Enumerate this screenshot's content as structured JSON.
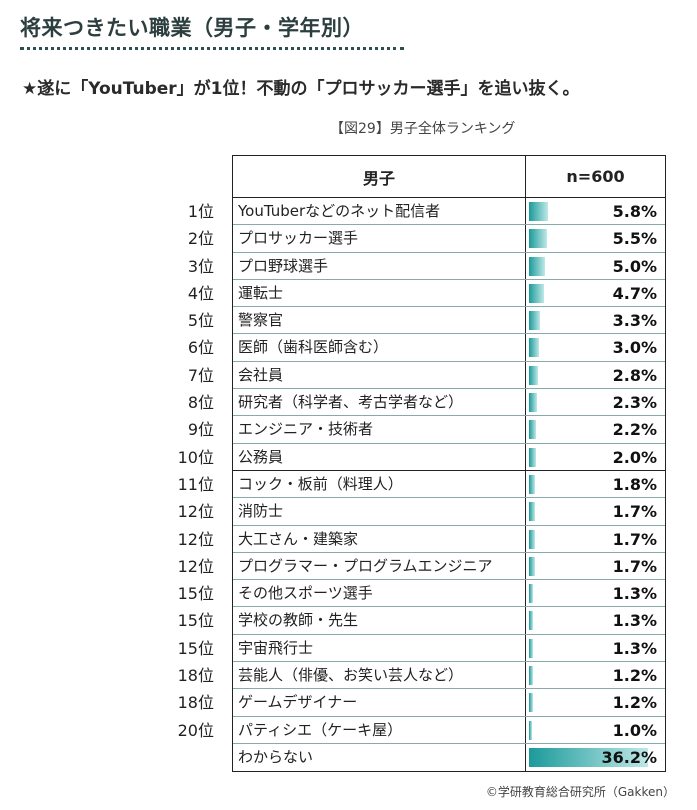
{
  "header": {
    "title": "将来つきたい職業（男子・学年別）",
    "subtitle": "★遂に「YouTuber」が1位！不動の「プロサッカー選手」を追い抜く。",
    "figure_caption": "【図29】男子全体ランキング",
    "credit": "©学研教育総合研究所（Gakken）"
  },
  "table": {
    "col_name_header": "男子",
    "col_value_header": "n=600"
  },
  "chart_data": {
    "type": "bar",
    "orientation": "horizontal",
    "bar_color": "#1b9a9a",
    "xlim": [
      0,
      40
    ],
    "ranks": [
      "1位",
      "2位",
      "3位",
      "4位",
      "5位",
      "6位",
      "7位",
      "8位",
      "9位",
      "10位",
      "11位",
      "12位",
      "12位",
      "12位",
      "15位",
      "15位",
      "15位",
      "18位",
      "18位",
      "20位",
      ""
    ],
    "categories": [
      "YouTuberなどのネット配信者",
      "プロサッカー選手",
      "プロ野球選手",
      "運転士",
      "警察官",
      "医師（歯科医師含む）",
      "会社員",
      "研究者（科学者、考古学者など）",
      "エンジニア・技術者",
      "公務員",
      "コック・板前（料理人）",
      "消防士",
      "大工さん・建築家",
      "プログラマー・プログラムエンジニア",
      "その他スポーツ選手",
      "学校の教師・先生",
      "宇宙飛行士",
      "芸能人（俳優、お笑い芸人など）",
      "ゲームデザイナー",
      "パティシエ（ケーキ屋）",
      "わからない"
    ],
    "values": [
      5.8,
      5.5,
      5.0,
      4.7,
      3.3,
      3.0,
      2.8,
      2.3,
      2.2,
      2.0,
      1.8,
      1.7,
      1.7,
      1.7,
      1.3,
      1.3,
      1.3,
      1.2,
      1.2,
      1.0,
      36.2
    ],
    "labels": [
      "5.8%",
      "5.5%",
      "5.0%",
      "4.7%",
      "3.3%",
      "3.0%",
      "2.8%",
      "2.3%",
      "2.2%",
      "2.0%",
      "1.8%",
      "1.7%",
      "1.7%",
      "1.7%",
      "1.3%",
      "1.3%",
      "1.3%",
      "1.2%",
      "1.2%",
      "1.0%",
      "36.2%"
    ]
  }
}
